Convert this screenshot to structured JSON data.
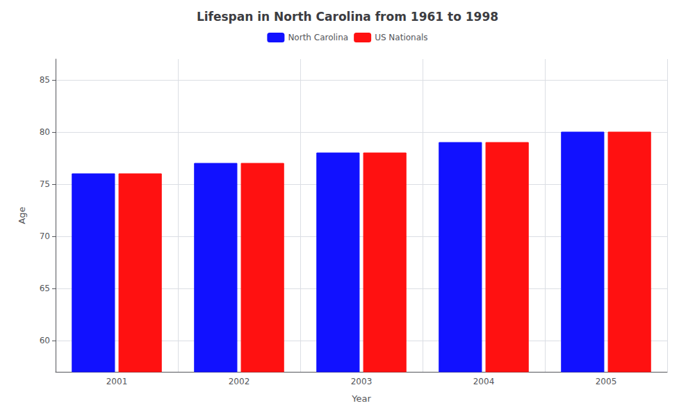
{
  "chart_data": {
    "type": "bar",
    "title": "Lifespan in North Carolina from 1961 to 1998",
    "xlabel": "Year",
    "ylabel": "Age",
    "categories": [
      "2001",
      "2002",
      "2003",
      "2004",
      "2005"
    ],
    "series": [
      {
        "name": "North Carolina",
        "color": "#1111ff",
        "values": [
          76,
          77,
          78,
          79,
          80
        ]
      },
      {
        "name": "US Nationals",
        "color": "#ff1111",
        "values": [
          76,
          77,
          78,
          79,
          80
        ]
      }
    ],
    "ylim": [
      57,
      87
    ],
    "yticks": [
      60,
      65,
      70,
      75,
      80,
      85
    ],
    "grid": true,
    "legend": "top"
  }
}
